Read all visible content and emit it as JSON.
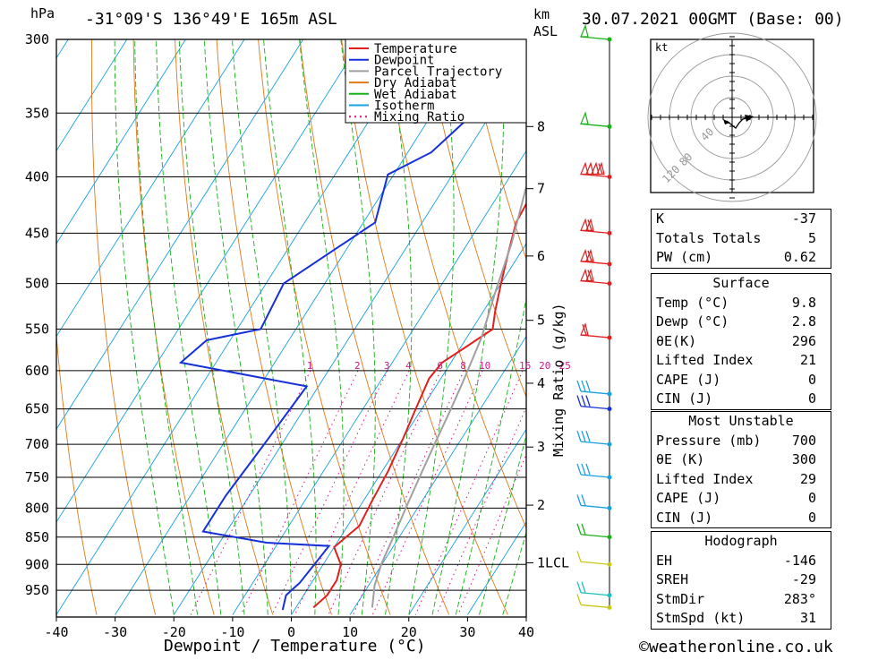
{
  "header": {
    "location": "-31°09'S 136°49'E 165m ASL",
    "datetime": "30.07.2021 00GMT (Base: 00)",
    "pressure_unit": "hPa",
    "km_unit": "km",
    "asl_unit": "ASL"
  },
  "legend": {
    "items": [
      {
        "label": "Temperature",
        "color": "#e02020",
        "dash": false
      },
      {
        "label": "Dewpoint",
        "color": "#1530d8",
        "dash": false
      },
      {
        "label": "Parcel Trajectory",
        "color": "#a0a0a0",
        "dash": false
      },
      {
        "label": "Dry Adiabat",
        "color": "#e07818",
        "dash": false
      },
      {
        "label": "Wet Adiabat",
        "color": "#18b018",
        "dash": false
      },
      {
        "label": "Isotherm",
        "color": "#18a0e0",
        "dash": false
      },
      {
        "label": "Mixing Ratio",
        "color": "#d01888",
        "dash": true
      }
    ]
  },
  "chart_data": {
    "type": "line",
    "xlabel": "Dewpoint / Temperature (°C)",
    "ylabel": "Mixing Ratio (g/kg)",
    "xlim": [
      -40,
      40
    ],
    "x_ticks": [
      -40,
      -30,
      -20,
      -10,
      0,
      10,
      20,
      30,
      40
    ],
    "pressure_levels": [
      300,
      350,
      400,
      450,
      500,
      550,
      600,
      650,
      700,
      750,
      800,
      850,
      900,
      950
    ],
    "pressure_range": [
      300,
      990
    ],
    "km_ticks": [
      {
        "label": "8",
        "p": 360
      },
      {
        "label": "7",
        "p": 410
      },
      {
        "label": "6",
        "p": 472
      },
      {
        "label": "5",
        "p": 540
      },
      {
        "label": "4",
        "p": 616
      },
      {
        "label": "3",
        "p": 704
      },
      {
        "label": "2",
        "p": 795
      },
      {
        "label": "1",
        "p": 897
      }
    ],
    "lcl": {
      "label": "LCL",
      "p": 897
    },
    "mixing_ratio_labels": [
      "1",
      "2",
      "3",
      "4",
      "6",
      "8",
      "10",
      "16",
      "20",
      "25"
    ],
    "series": [
      {
        "name": "Temperature",
        "points": [
          [
            -4,
            300
          ],
          [
            -1,
            335
          ],
          [
            -2,
            362
          ],
          [
            -4,
            390
          ],
          [
            -4.5,
            410
          ],
          [
            -4,
            440
          ],
          [
            -2,
            470
          ],
          [
            0,
            500
          ],
          [
            2,
            530
          ],
          [
            3.5,
            550
          ],
          [
            1,
            570
          ],
          [
            -1.5,
            590
          ],
          [
            -2,
            610
          ],
          [
            -1,
            650
          ],
          [
            0,
            690
          ],
          [
            1,
            740
          ],
          [
            1.5,
            790
          ],
          [
            2,
            830
          ],
          [
            0,
            868
          ],
          [
            3,
            900
          ],
          [
            4,
            930
          ],
          [
            4,
            960
          ],
          [
            3,
            985
          ]
        ]
      },
      {
        "name": "Dewpoint",
        "points": [
          [
            -21,
            300
          ],
          [
            -23,
            350
          ],
          [
            -26,
            380
          ],
          [
            -31,
            398
          ],
          [
            -28,
            440
          ],
          [
            -37,
            500
          ],
          [
            -36,
            550
          ],
          [
            -44,
            563
          ],
          [
            -46,
            590
          ],
          [
            -22,
            620
          ],
          [
            -23,
            700
          ],
          [
            -24,
            780
          ],
          [
            -24,
            840
          ],
          [
            -12,
            860
          ],
          [
            -1,
            866
          ],
          [
            -2,
            935
          ],
          [
            -3,
            960
          ],
          [
            -2,
            990
          ]
        ]
      },
      {
        "name": "Parcel Trajectory",
        "points": [
          [
            -12,
            320
          ],
          [
            -9,
            360
          ],
          [
            -6,
            410
          ],
          [
            -2.5,
            460
          ],
          [
            0,
            510
          ],
          [
            2.5,
            560
          ],
          [
            4,
            610
          ],
          [
            5,
            650
          ],
          [
            6,
            700
          ],
          [
            7,
            750
          ],
          [
            8,
            800
          ],
          [
            9,
            850
          ],
          [
            9.8,
            897
          ],
          [
            11,
            940
          ],
          [
            13,
            985
          ]
        ]
      }
    ]
  },
  "hodograph": {
    "unit": "kt",
    "ring_labels": [
      "120",
      "80",
      "40"
    ]
  },
  "indices": {
    "rows": [
      {
        "label": "K",
        "value": "-37"
      },
      {
        "label": "Totals Totals",
        "value": "5"
      },
      {
        "label": "PW (cm)",
        "value": "0.62"
      }
    ]
  },
  "surface": {
    "title": "Surface",
    "rows": [
      {
        "label": "Temp (°C)",
        "value": "9.8"
      },
      {
        "label": "Dewp (°C)",
        "value": "2.8"
      },
      {
        "label": "θE(K)",
        "value": "296"
      },
      {
        "label": "Lifted Index",
        "value": "21"
      },
      {
        "label": "CAPE (J)",
        "value": "0"
      },
      {
        "label": "CIN (J)",
        "value": "0"
      }
    ]
  },
  "most_unstable": {
    "title": "Most Unstable",
    "rows": [
      {
        "label": "Pressure (mb)",
        "value": "700"
      },
      {
        "label": "θE (K)",
        "value": "300"
      },
      {
        "label": "Lifted Index",
        "value": "29"
      },
      {
        "label": "CAPE (J)",
        "value": "0"
      },
      {
        "label": "CIN (J)",
        "value": "0"
      }
    ]
  },
  "hodograph_stats": {
    "title": "Hodograph",
    "rows": [
      {
        "label": "EH",
        "value": "-146"
      },
      {
        "label": "SREH",
        "value": "-29"
      },
      {
        "label": "StmDir",
        "value": "283°"
      },
      {
        "label": "StmSpd (kt)",
        "value": "31"
      }
    ]
  },
  "wind_barbs": [
    {
      "p": 300,
      "color": "#18b018",
      "flags": 1,
      "full": 0
    },
    {
      "p": 360,
      "color": "#18b018",
      "flags": 1,
      "full": 0
    },
    {
      "p": 400,
      "color": "#e02020",
      "flags": 4,
      "full": 1
    },
    {
      "p": 450,
      "color": "#e02020",
      "flags": 2,
      "full": 1
    },
    {
      "p": 480,
      "color": "#e02020",
      "flags": 2,
      "full": 1
    },
    {
      "p": 500,
      "color": "#e02020",
      "flags": 2,
      "full": 1
    },
    {
      "p": 560,
      "color": "#e02020",
      "flags": 1,
      "full": 1
    },
    {
      "p": 630,
      "color": "#18a0e0",
      "flags": 0,
      "full": 3
    },
    {
      "p": 650,
      "color": "#1530d8",
      "flags": 0,
      "full": 3
    },
    {
      "p": 700,
      "color": "#18a0e0",
      "flags": 0,
      "full": 3
    },
    {
      "p": 750,
      "color": "#18a0e0",
      "flags": 0,
      "full": 3
    },
    {
      "p": 800,
      "color": "#18a0e0",
      "flags": 0,
      "full": 2
    },
    {
      "p": 850,
      "color": "#18b018",
      "flags": 0,
      "full": 2
    },
    {
      "p": 900,
      "color": "#c8c818",
      "flags": 0,
      "full": 1
    },
    {
      "p": 960,
      "color": "#18c0c0",
      "flags": 0,
      "full": 2
    },
    {
      "p": 985,
      "color": "#c8c818",
      "flags": 0,
      "full": 1
    }
  ],
  "footer": {
    "credit": "©weatheronline.co.uk"
  }
}
